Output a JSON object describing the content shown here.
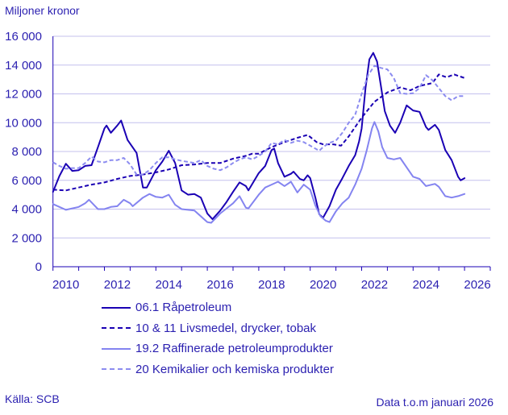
{
  "chart_data": {
    "type": "line",
    "ylabel": "Miljoner kronor",
    "ylim": [
      0,
      16000
    ],
    "xlim": [
      2010,
      2027
    ],
    "yticks": [
      0,
      2000,
      4000,
      6000,
      8000,
      10000,
      12000,
      14000,
      16000
    ],
    "ytick_labels": [
      "0",
      "2 000",
      "4 000",
      "6 000",
      "8 000",
      "10 000",
      "12 000",
      "14 000",
      "16 000"
    ],
    "xtick_labels": [
      "2010",
      "2012",
      "2014",
      "2016",
      "2018",
      "2020",
      "2022",
      "2024",
      "2026"
    ],
    "grid": "horizontal",
    "legend_position": "bottom",
    "series": [
      {
        "name": "06.1 Råpetroleum",
        "color": "#1a00b4",
        "dash": false,
        "x": [
          2010,
          2010.25,
          2010.5,
          2010.75,
          2011,
          2011.25,
          2011.5,
          2011.75,
          2012,
          2012.08,
          2012.25,
          2012.5,
          2012.65,
          2012.9,
          2013.25,
          2013.5,
          2013.65,
          2014,
          2014.25,
          2014.5,
          2014.75,
          2015,
          2015.25,
          2015.5,
          2015.75,
          2016,
          2016.2,
          2016.5,
          2016.75,
          2017,
          2017.25,
          2017.5,
          2017.6,
          2018,
          2018.25,
          2018.5,
          2018.6,
          2018.75,
          2019,
          2019.25,
          2019.35,
          2019.6,
          2019.75,
          2019.9,
          2020,
          2020.2,
          2020.35,
          2020.5,
          2020.75,
          2021,
          2021.25,
          2021.5,
          2021.75,
          2021.9,
          2022,
          2022.15,
          2022.3,
          2022.45,
          2022.6,
          2022.75,
          2022.9,
          2023.1,
          2023.3,
          2023.5,
          2023.75,
          2024,
          2024.25,
          2024.5,
          2024.6,
          2024.85,
          2025,
          2025.25,
          2025.5,
          2025.75,
          2025.85,
          2026
        ],
        "y": [
          5200,
          6300,
          7150,
          6650,
          6700,
          7000,
          7050,
          8300,
          9600,
          9800,
          9300,
          9800,
          10150,
          8800,
          7900,
          5500,
          5500,
          6700,
          7300,
          8050,
          7200,
          5300,
          5000,
          5050,
          4800,
          3700,
          3300,
          3900,
          4500,
          5200,
          5850,
          5600,
          5300,
          6500,
          7000,
          8100,
          8200,
          7200,
          6250,
          6450,
          6600,
          6100,
          6000,
          6350,
          6150,
          4800,
          3650,
          3400,
          4200,
          5350,
          6150,
          7000,
          7750,
          8700,
          9600,
          12400,
          14400,
          14850,
          14250,
          12550,
          10800,
          9800,
          9300,
          10000,
          11200,
          10850,
          10750,
          9700,
          9500,
          9850,
          9500,
          8100,
          7400,
          6250,
          6000,
          6150
        ]
      },
      {
        "name": "10 & 11 Livsmedel, drycker, tobak",
        "color": "#1a00b4",
        "dash": true,
        "x": [
          2010,
          2010.5,
          2011,
          2011.5,
          2012,
          2012.5,
          2013,
          2013.5,
          2014,
          2014.5,
          2015,
          2015.5,
          2016,
          2016.5,
          2017,
          2017.5,
          2017.75,
          2018,
          2018.5,
          2019,
          2019.5,
          2019.9,
          2020.25,
          2020.5,
          2020.9,
          2021.2,
          2021.5,
          2022,
          2022.5,
          2023,
          2023.5,
          2023.9,
          2024.25,
          2024.75,
          2025,
          2025.3,
          2025.6,
          2026
        ],
        "y": [
          5350,
          5300,
          5500,
          5700,
          5850,
          6100,
          6300,
          6400,
          6550,
          6750,
          7050,
          7100,
          7200,
          7200,
          7500,
          7700,
          7850,
          7850,
          8300,
          8650,
          8950,
          9150,
          8650,
          8500,
          8500,
          8400,
          9050,
          10350,
          11450,
          12100,
          12450,
          12250,
          12550,
          12750,
          13350,
          13150,
          13350,
          13100
        ]
      },
      {
        "name": "19.2 Raffinerade petroleumprodukter",
        "color": "#8484f0",
        "dash": false,
        "x": [
          2010,
          2010.25,
          2010.5,
          2010.75,
          2011,
          2011.25,
          2011.4,
          2011.75,
          2012,
          2012.25,
          2012.5,
          2012.75,
          2013,
          2013.1,
          2013.5,
          2013.75,
          2014,
          2014.25,
          2014.5,
          2014.75,
          2015,
          2015.5,
          2016,
          2016.15,
          2016.5,
          2017,
          2017.25,
          2017.5,
          2017.6,
          2018,
          2018.25,
          2018.5,
          2018.75,
          2019,
          2019.25,
          2019.5,
          2019.75,
          2020,
          2020.2,
          2020.4,
          2020.6,
          2020.75,
          2021,
          2021.25,
          2021.5,
          2021.75,
          2022,
          2022.2,
          2022.4,
          2022.5,
          2022.65,
          2022.8,
          2023,
          2023.25,
          2023.5,
          2023.75,
          2024,
          2024.25,
          2024.5,
          2024.85,
          2025,
          2025.25,
          2025.5,
          2025.75,
          2026
        ],
        "y": [
          4350,
          4150,
          3950,
          4050,
          4150,
          4400,
          4650,
          4000,
          4000,
          4150,
          4200,
          4650,
          4400,
          4200,
          4800,
          5050,
          4850,
          4800,
          5000,
          4300,
          4000,
          3900,
          3100,
          3050,
          3700,
          4400,
          4900,
          4100,
          4050,
          5000,
          5500,
          5700,
          5900,
          5600,
          5900,
          5150,
          5700,
          5350,
          4250,
          3500,
          3200,
          3100,
          3850,
          4400,
          4800,
          5700,
          6800,
          8100,
          9600,
          10050,
          9400,
          8300,
          7550,
          7450,
          7550,
          6900,
          6250,
          6100,
          5600,
          5750,
          5550,
          4900,
          4800,
          4900,
          5050
        ]
      },
      {
        "name": "20 Kemikalier och kemiska produkter",
        "color": "#8c8cf0",
        "dash": true,
        "x": [
          2010,
          2010.25,
          2010.5,
          2010.75,
          2011,
          2011.25,
          2011.5,
          2011.75,
          2012,
          2012.25,
          2012.5,
          2012.75,
          2013,
          2013.25,
          2013.5,
          2013.75,
          2014,
          2014.25,
          2014.5,
          2014.75,
          2015,
          2015.5,
          2015.75,
          2016,
          2016.25,
          2016.5,
          2016.75,
          2017,
          2017.25,
          2017.5,
          2017.75,
          2018,
          2018.25,
          2018.5,
          2018.75,
          2019,
          2019.25,
          2019.5,
          2019.75,
          2020,
          2020.35,
          2020.5,
          2020.75,
          2021,
          2021.25,
          2021.5,
          2021.75,
          2022,
          2022.25,
          2022.5,
          2022.75,
          2023,
          2023.25,
          2023.5,
          2023.75,
          2024,
          2024.25,
          2024.5,
          2024.75,
          2025,
          2025.25,
          2025.5,
          2025.75,
          2026
        ],
        "y": [
          7250,
          7000,
          6800,
          6850,
          6850,
          7200,
          7650,
          7300,
          7250,
          7400,
          7400,
          7550,
          7100,
          6400,
          6400,
          6700,
          7200,
          7600,
          7600,
          7450,
          7350,
          7200,
          7400,
          7000,
          6800,
          6700,
          6900,
          7200,
          7450,
          7600,
          7450,
          7700,
          8000,
          8600,
          8500,
          8800,
          8600,
          8750,
          8650,
          8400,
          8050,
          8300,
          8600,
          8750,
          9300,
          10000,
          10550,
          12000,
          13300,
          13950,
          13800,
          13700,
          13100,
          12050,
          12000,
          12050,
          12400,
          13300,
          12950,
          12400,
          11850,
          11550,
          11850,
          11850
        ]
      }
    ]
  },
  "footer": {
    "source": "Källa: SCB",
    "note": "Data t.o.m januari 2026"
  }
}
